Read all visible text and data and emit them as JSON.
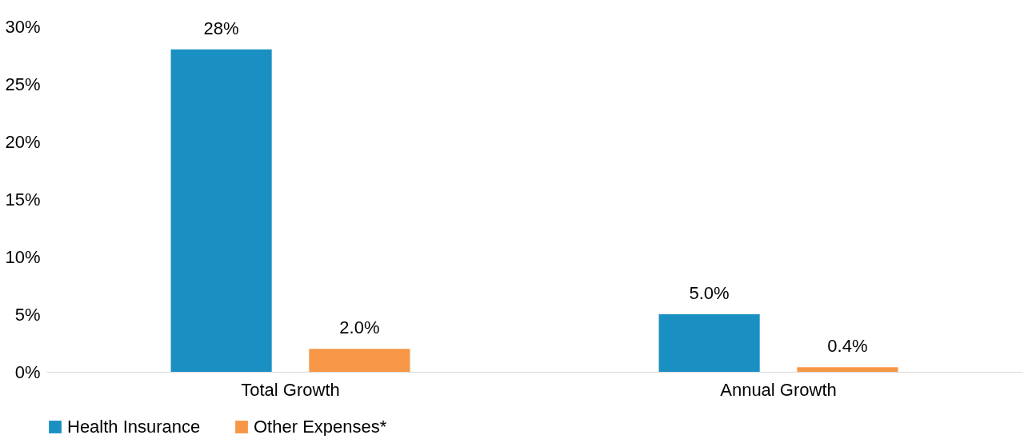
{
  "chart_data": {
    "type": "bar",
    "categories": [
      "Total Growth",
      "Annual Growth"
    ],
    "series": [
      {
        "name": "Health Insurance",
        "color": "#1a8fc2",
        "values": [
          28,
          5.0
        ],
        "value_labels": [
          "28%",
          "5.0%"
        ]
      },
      {
        "name": "Other Expenses*",
        "color": "#f79646",
        "values": [
          2.0,
          0.4
        ],
        "value_labels": [
          "2.0%",
          "0.4%"
        ]
      }
    ],
    "ylim": [
      0,
      30
    ],
    "yticks": [
      {
        "value": 0,
        "label": "0%"
      },
      {
        "value": 5,
        "label": "5%"
      },
      {
        "value": 10,
        "label": "10%"
      },
      {
        "value": 15,
        "label": "15%"
      },
      {
        "value": 20,
        "label": "20%"
      },
      {
        "value": 25,
        "label": "25%"
      },
      {
        "value": 30,
        "label": "30%"
      }
    ],
    "grid": false,
    "legend": "bottom"
  }
}
